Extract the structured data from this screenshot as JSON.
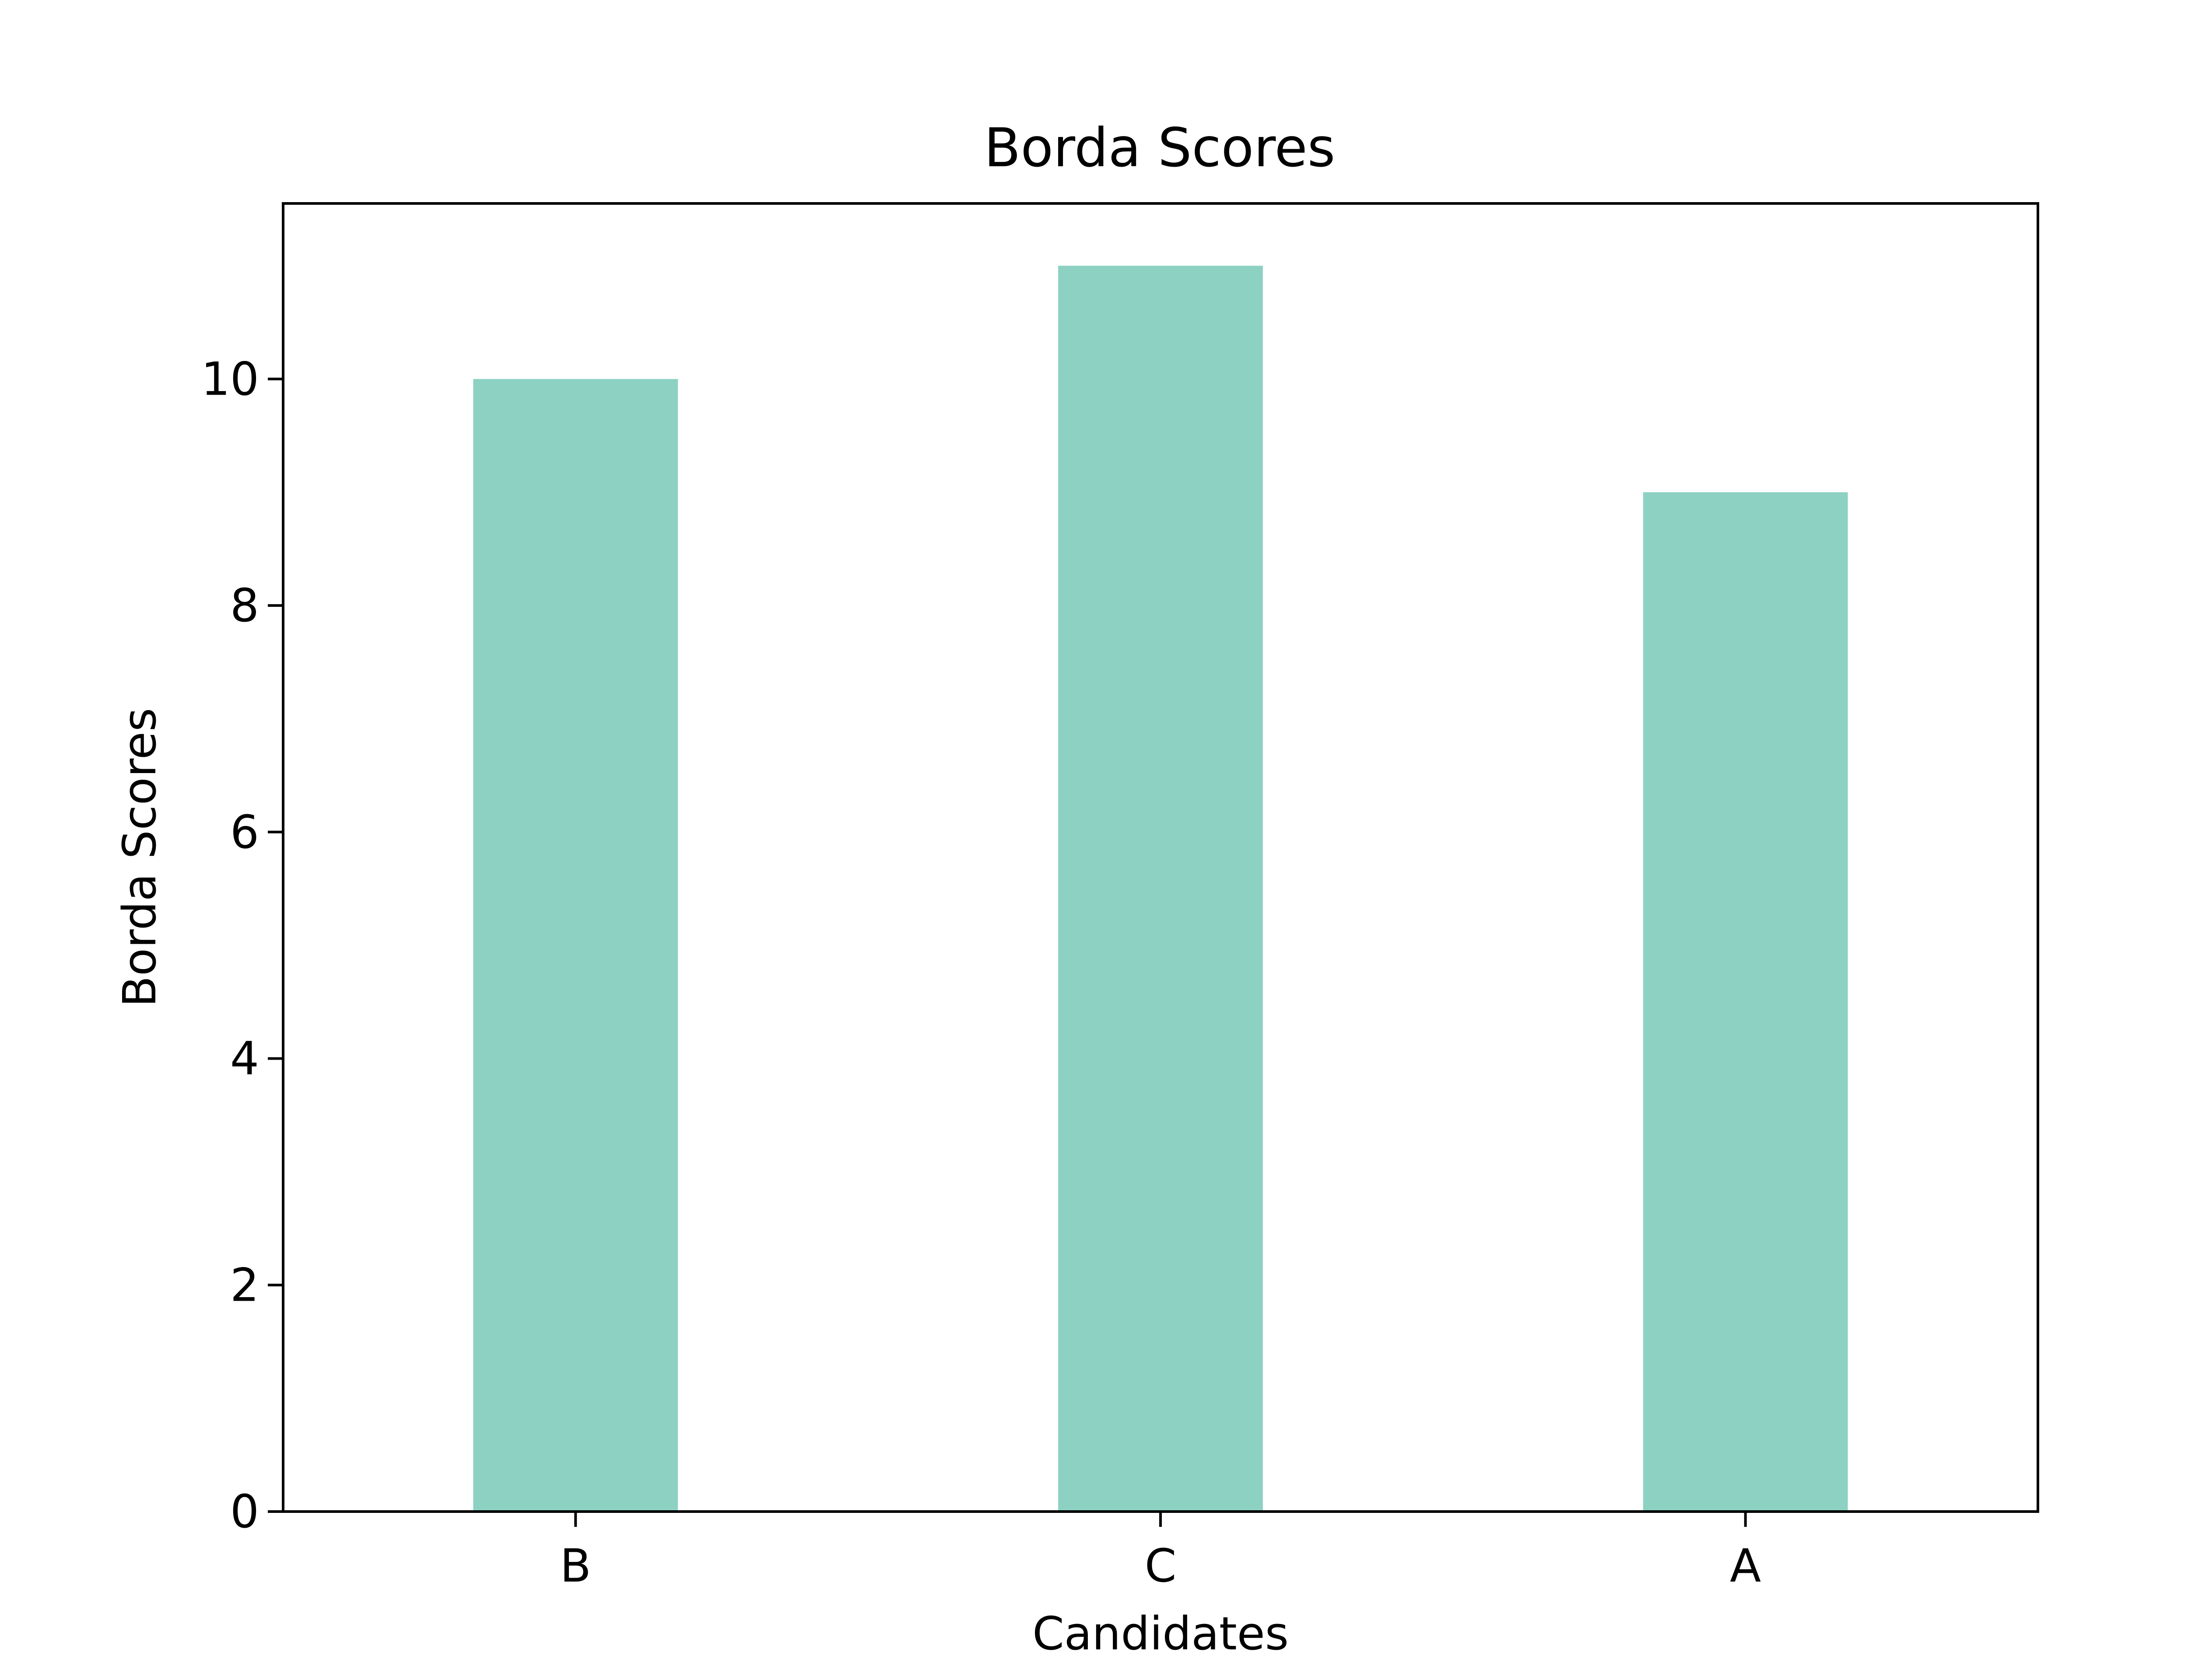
{
  "chart_data": {
    "type": "bar",
    "title": "Borda Scores",
    "xlabel": "Candidates",
    "ylabel": "Borda Scores",
    "categories": [
      "B",
      "C",
      "A"
    ],
    "values": [
      10,
      11,
      9
    ],
    "ylim": [
      0,
      11.55
    ],
    "yticks": [
      0,
      2,
      4,
      6,
      8,
      10
    ],
    "grid": false,
    "legend": "none",
    "bar_color": "#8dd1c3",
    "axis_color": "#000000"
  }
}
